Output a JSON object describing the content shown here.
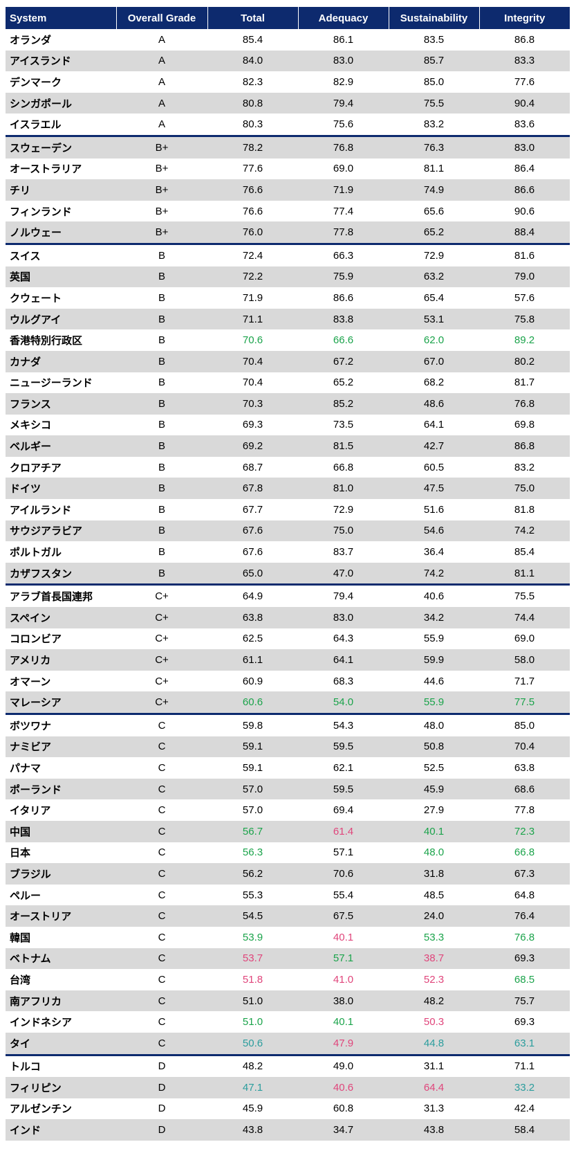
{
  "table": {
    "header": [
      "System",
      "Overall Grade",
      "Total",
      "Adequacy",
      "Sustainability",
      "Integrity"
    ],
    "groups": [
      {
        "rows": [
          {
            "cells": [
              "オランダ",
              "A",
              "85.4",
              "86.1",
              "83.5",
              "86.8"
            ]
          },
          {
            "cells": [
              "アイスランド",
              "A",
              "84.0",
              "83.0",
              "85.7",
              "83.3"
            ]
          },
          {
            "cells": [
              "デンマーク",
              "A",
              "82.3",
              "82.9",
              "85.0",
              "77.6"
            ]
          },
          {
            "cells": [
              "シンガポール",
              "A",
              "80.8",
              "79.4",
              "75.5",
              "90.4"
            ]
          },
          {
            "cells": [
              "イスラエル",
              "A",
              "80.3",
              "75.6",
              "83.2",
              "83.6"
            ]
          }
        ]
      },
      {
        "rows": [
          {
            "cells": [
              "スウェーデン",
              "B+",
              "78.2",
              "76.8",
              "76.3",
              "83.0"
            ]
          },
          {
            "cells": [
              "オーストラリア",
              "B+",
              "77.6",
              "69.0",
              "81.1",
              "86.4"
            ]
          },
          {
            "cells": [
              "チリ",
              "B+",
              "76.6",
              "71.9",
              "74.9",
              "86.6"
            ]
          },
          {
            "cells": [
              "フィンランド",
              "B+",
              "76.6",
              "77.4",
              "65.6",
              "90.6"
            ]
          },
          {
            "cells": [
              "ノルウェー",
              "B+",
              "76.0",
              "77.8",
              "65.2",
              "88.4"
            ]
          }
        ]
      },
      {
        "rows": [
          {
            "cells": [
              "スイス",
              "B",
              "72.4",
              "66.3",
              "72.9",
              "81.6"
            ]
          },
          {
            "cells": [
              "英国",
              "B",
              "72.2",
              "75.9",
              "63.2",
              "79.0"
            ]
          },
          {
            "cells": [
              "クウェート",
              "B",
              "71.9",
              "86.6",
              "65.4",
              "57.6"
            ]
          },
          {
            "cells": [
              "ウルグアイ",
              "B",
              "71.1",
              "83.8",
              "53.1",
              "75.8"
            ]
          },
          {
            "cells": [
              "香港特別行政区",
              "B",
              "70.6",
              "66.6",
              "62.0",
              "89.2"
            ],
            "colors": [
              "#1aa34a",
              "#1aa34a",
              "#1aa34a",
              "#1aa34a"
            ]
          },
          {
            "cells": [
              "カナダ",
              "B",
              "70.4",
              "67.2",
              "67.0",
              "80.2"
            ]
          },
          {
            "cells": [
              "ニュージーランド",
              "B",
              "70.4",
              "65.2",
              "68.2",
              "81.7"
            ]
          },
          {
            "cells": [
              "フランス",
              "B",
              "70.3",
              "85.2",
              "48.6",
              "76.8"
            ]
          },
          {
            "cells": [
              "メキシコ",
              "B",
              "69.3",
              "73.5",
              "64.1",
              "69.8"
            ]
          },
          {
            "cells": [
              "ベルギー",
              "B",
              "69.2",
              "81.5",
              "42.7",
              "86.8"
            ]
          },
          {
            "cells": [
              "クロアチア",
              "B",
              "68.7",
              "66.8",
              "60.5",
              "83.2"
            ]
          },
          {
            "cells": [
              "ドイツ",
              "B",
              "67.8",
              "81.0",
              "47.5",
              "75.0"
            ]
          },
          {
            "cells": [
              "アイルランド",
              "B",
              "67.7",
              "72.9",
              "51.6",
              "81.8"
            ]
          },
          {
            "cells": [
              "サウジアラビア",
              "B",
              "67.6",
              "75.0",
              "54.6",
              "74.2"
            ]
          },
          {
            "cells": [
              "ポルトガル",
              "B",
              "67.6",
              "83.7",
              "36.4",
              "85.4"
            ]
          },
          {
            "cells": [
              "カザフスタン",
              "B",
              "65.0",
              "47.0",
              "74.2",
              "81.1"
            ]
          }
        ]
      },
      {
        "rows": [
          {
            "cells": [
              "アラブ首長国連邦",
              "C+",
              "64.9",
              "79.4",
              "40.6",
              "75.5"
            ]
          },
          {
            "cells": [
              "スペイン",
              "C+",
              "63.8",
              "83.0",
              "34.2",
              "74.4"
            ]
          },
          {
            "cells": [
              "コロンビア",
              "C+",
              "62.5",
              "64.3",
              "55.9",
              "69.0"
            ]
          },
          {
            "cells": [
              "アメリカ",
              "C+",
              "61.1",
              "64.1",
              "59.9",
              "58.0"
            ]
          },
          {
            "cells": [
              "オマーン",
              "C+",
              "60.9",
              "68.3",
              "44.6",
              "71.7"
            ]
          },
          {
            "cells": [
              "マレーシア",
              "C+",
              "60.6",
              "54.0",
              "55.9",
              "77.5"
            ],
            "colors": [
              "#1aa34a",
              "#1aa34a",
              "#1aa34a",
              "#1aa34a"
            ]
          }
        ]
      },
      {
        "rows": [
          {
            "cells": [
              "ボツワナ",
              "C",
              "59.8",
              "54.3",
              "48.0",
              "85.0"
            ]
          },
          {
            "cells": [
              "ナミビア",
              "C",
              "59.1",
              "59.5",
              "50.8",
              "70.4"
            ]
          },
          {
            "cells": [
              "パナマ",
              "C",
              "59.1",
              "62.1",
              "52.5",
              "63.8"
            ]
          },
          {
            "cells": [
              "ポーランド",
              "C",
              "57.0",
              "59.5",
              "45.9",
              "68.6"
            ]
          },
          {
            "cells": [
              "イタリア",
              "C",
              "57.0",
              "69.4",
              "27.9",
              "77.8"
            ]
          },
          {
            "cells": [
              "中国",
              "C",
              "56.7",
              "61.4",
              "40.1",
              "72.3"
            ],
            "colors": [
              "#1aa34a",
              "#e0457b",
              "#1aa34a",
              "#1aa34a"
            ]
          },
          {
            "cells": [
              "日本",
              "C",
              "56.3",
              "57.1",
              "48.0",
              "66.8"
            ],
            "colors": [
              "#1aa34a",
              "#000000",
              "#1aa34a",
              "#1aa34a"
            ]
          },
          {
            "cells": [
              "ブラジル",
              "C",
              "56.2",
              "70.6",
              "31.8",
              "67.3"
            ]
          },
          {
            "cells": [
              "ペルー",
              "C",
              "55.3",
              "55.4",
              "48.5",
              "64.8"
            ]
          },
          {
            "cells": [
              "オーストリア",
              "C",
              "54.5",
              "67.5",
              "24.0",
              "76.4"
            ]
          },
          {
            "cells": [
              "韓国",
              "C",
              "53.9",
              "40.1",
              "53.3",
              "76.8"
            ],
            "colors": [
              "#1aa34a",
              "#e0457b",
              "#1aa34a",
              "#1aa34a"
            ]
          },
          {
            "cells": [
              "ベトナム",
              "C",
              "53.7",
              "57.1",
              "38.7",
              "69.3"
            ],
            "colors": [
              "#e0457b",
              "#1aa34a",
              "#e0457b",
              "#000000"
            ]
          },
          {
            "cells": [
              "台湾",
              "C",
              "51.8",
              "41.0",
              "52.3",
              "68.5"
            ],
            "colors": [
              "#e0457b",
              "#e0457b",
              "#e0457b",
              "#1aa34a"
            ]
          },
          {
            "cells": [
              "南アフリカ",
              "C",
              "51.0",
              "38.0",
              "48.2",
              "75.7"
            ]
          },
          {
            "cells": [
              "インドネシア",
              "C",
              "51.0",
              "40.1",
              "50.3",
              "69.3"
            ],
            "colors": [
              "#1aa34a",
              "#1aa34a",
              "#e0457b",
              "#000000"
            ]
          },
          {
            "cells": [
              "タイ",
              "C",
              "50.6",
              "47.9",
              "44.8",
              "63.1"
            ],
            "colors": [
              "#2a9d9d",
              "#e0457b",
              "#2a9d9d",
              "#2a9d9d"
            ]
          }
        ]
      },
      {
        "rows": [
          {
            "cells": [
              "トルコ",
              "D",
              "48.2",
              "49.0",
              "31.1",
              "71.1"
            ]
          },
          {
            "cells": [
              "フィリピン",
              "D",
              "47.1",
              "40.6",
              "64.4",
              "33.2"
            ],
            "colors": [
              "#2a9d9d",
              "#e0457b",
              "#e0457b",
              "#2a9d9d"
            ]
          },
          {
            "cells": [
              "アルゼンチン",
              "D",
              "45.9",
              "60.8",
              "31.3",
              "42.4"
            ]
          },
          {
            "cells": [
              "インド",
              "D",
              "43.8",
              "34.7",
              "43.8",
              "58.4"
            ]
          }
        ]
      }
    ]
  }
}
